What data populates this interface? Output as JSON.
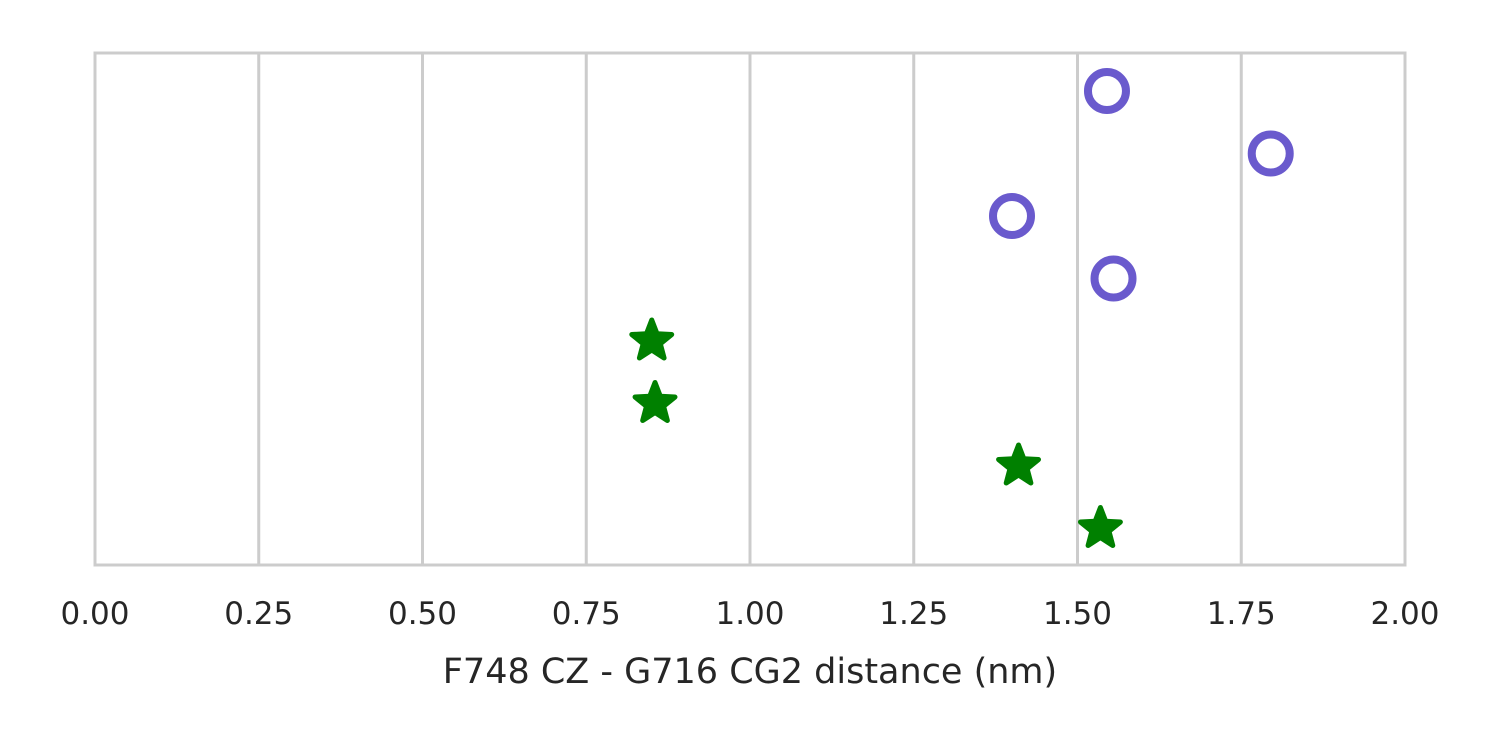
{
  "chart_data": {
    "type": "scatter",
    "xlabel": "F748 CZ - G716 CG2 distance (nm)",
    "xlim": [
      0.0,
      2.0
    ],
    "xticks": [
      "0.00",
      "0.25",
      "0.50",
      "0.75",
      "1.00",
      "1.25",
      "1.50",
      "1.75",
      "2.00"
    ],
    "y_axis": "categorical rows, no labels",
    "grid": "vertical",
    "colors": {
      "circle": "#6a5acd",
      "star": "#008000",
      "grid": "#cccccc",
      "text": "#262626"
    },
    "series": [
      {
        "marker": "circle-open",
        "color": "#6a5acd",
        "rows": [
          1,
          2,
          3,
          4
        ],
        "x": [
          1.545,
          1.795,
          1.4,
          1.555
        ]
      },
      {
        "marker": "star",
        "color": "#008000",
        "rows": [
          5,
          6,
          7,
          8
        ],
        "x": [
          0.85,
          0.855,
          1.41,
          1.535
        ]
      }
    ]
  }
}
